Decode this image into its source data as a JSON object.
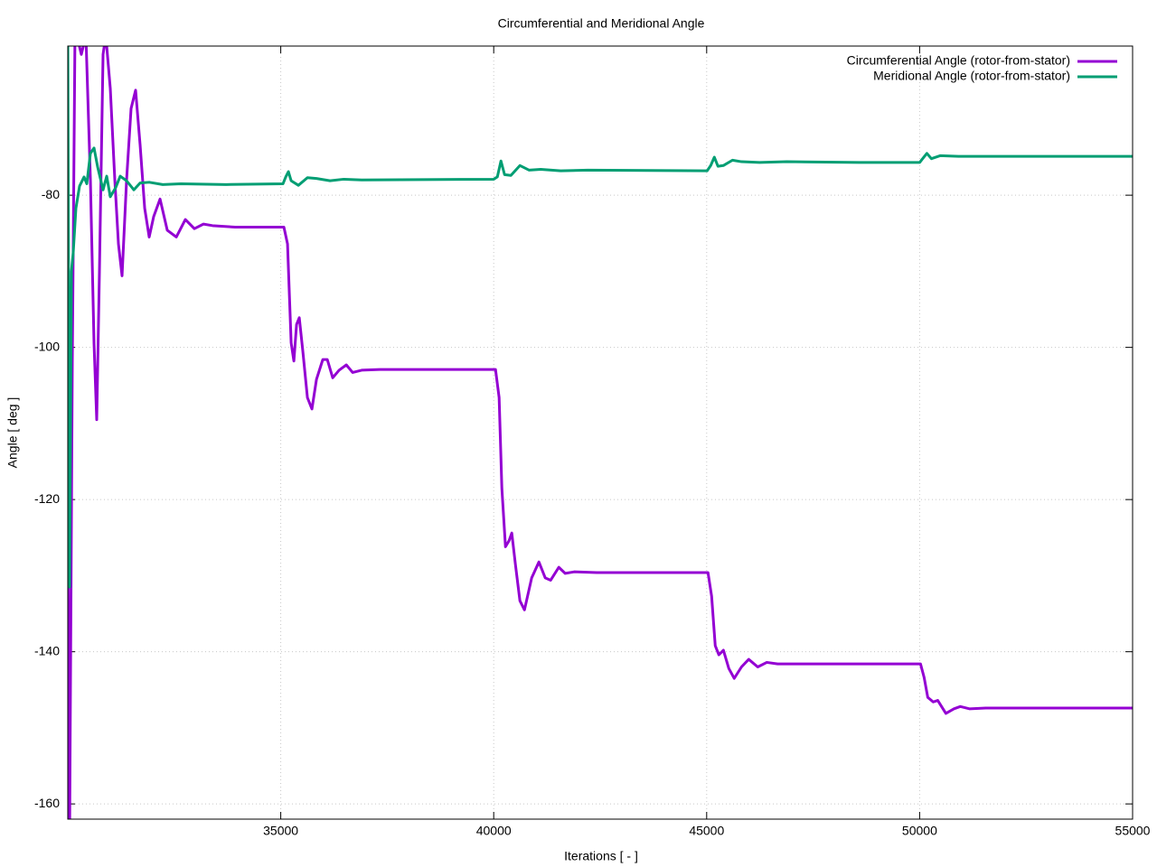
{
  "chart_data": {
    "type": "line",
    "title": "Circumferential and Meridional Angle",
    "x_label": "Iterations [ - ]",
    "y_label": "Angle [ deg ]",
    "xlim": [
      30000,
      55000
    ],
    "ylim": [
      -162,
      -60.4
    ],
    "xticks": [
      35000,
      40000,
      45000,
      50000,
      55000
    ],
    "yticks": [
      -160,
      -140,
      -120,
      -100,
      -80
    ],
    "grid": true,
    "legend": "top-right",
    "series": [
      {
        "name": "Circumferential Angle (rotor-from-stator)",
        "color": "#9400d3",
        "x": [
          30000,
          30042,
          30106,
          30170,
          30318,
          30425,
          30531,
          30616,
          30679,
          30743,
          30828,
          30892,
          30998,
          31104,
          31189,
          31274,
          31380,
          31486,
          31592,
          31698,
          31805,
          31911,
          32017,
          32166,
          32335,
          32548,
          32760,
          32972,
          33185,
          33397,
          33928,
          35074,
          35159,
          35244,
          35308,
          35371,
          35435,
          35520,
          35626,
          35732,
          35839,
          35987,
          36093,
          36220,
          36369,
          36539,
          36688,
          36900,
          37324,
          40042,
          40127,
          40191,
          40276,
          40361,
          40424,
          40509,
          40615,
          40722,
          40891,
          41061,
          41210,
          41337,
          41528,
          41677,
          41889,
          42420,
          45031,
          45116,
          45201,
          45286,
          45393,
          45520,
          45647,
          45817,
          45987,
          46199,
          46411,
          46666,
          47515,
          50021,
          50106,
          50191,
          50319,
          50425,
          50616,
          50807,
          50955,
          51168,
          51550,
          55000
        ],
        "values": [
          -123,
          -165,
          -102,
          -58,
          -61.5,
          -59,
          -78,
          -99.5,
          -109.5,
          -90,
          -61.5,
          -59,
          -66,
          -78,
          -86.4,
          -90.6,
          -78,
          -68.6,
          -66.2,
          -73.4,
          -81.7,
          -85.5,
          -82.8,
          -80.5,
          -84.6,
          -85.5,
          -83.2,
          -84.4,
          -83.8,
          -84,
          -84.2,
          -84.2,
          -86.4,
          -99.4,
          -101.8,
          -97,
          -96.1,
          -100.6,
          -106.6,
          -108.1,
          -104.2,
          -101.6,
          -101.6,
          -104,
          -103,
          -102.3,
          -103.3,
          -103,
          -102.9,
          -102.9,
          -106.6,
          -118.5,
          -126.2,
          -125.4,
          -124.4,
          -128.5,
          -133.3,
          -134.5,
          -130.3,
          -128.2,
          -130.3,
          -130.6,
          -128.9,
          -129.7,
          -129.5,
          -129.6,
          -129.6,
          -132.7,
          -139.2,
          -140.4,
          -139.8,
          -142.2,
          -143.5,
          -142,
          -141,
          -142,
          -141.4,
          -141.6,
          -141.6,
          -141.6,
          -143.4,
          -146,
          -146.6,
          -146.4,
          -148.1,
          -147.5,
          -147.2,
          -147.5,
          -147.4,
          -147.4
        ]
      },
      {
        "name": "Meridional Angle (rotor-from-stator)",
        "color": "#009e73",
        "x": [
          30000,
          30042,
          30085,
          30127,
          30191,
          30276,
          30382,
          30446,
          30531,
          30616,
          30701,
          30828,
          30913,
          30998,
          31125,
          31231,
          31380,
          31550,
          31698,
          31911,
          32229,
          32654,
          33715,
          35053,
          35117,
          35180,
          35244,
          35414,
          35626,
          35839,
          36157,
          36475,
          36900,
          40000,
          40085,
          40170,
          40255,
          40403,
          40616,
          40828,
          41104,
          41571,
          42208,
          45010,
          45095,
          45180,
          45265,
          45392,
          45605,
          45817,
          46242,
          46879,
          48577,
          50000,
          50085,
          50170,
          50276,
          50488,
          50913,
          51762,
          55000
        ],
        "values": [
          -59,
          -131.5,
          -90,
          -87.6,
          -81.7,
          -78.8,
          -77.6,
          -78.5,
          -74.5,
          -73.8,
          -76.3,
          -79.3,
          -77.5,
          -80.2,
          -79,
          -77.5,
          -78.1,
          -79.3,
          -78.4,
          -78.3,
          -78.6,
          -78.5,
          -78.6,
          -78.5,
          -77.6,
          -76.9,
          -78.1,
          -78.7,
          -77.7,
          -77.8,
          -78.1,
          -77.9,
          -78,
          -77.9,
          -77.6,
          -75.5,
          -77.3,
          -77.4,
          -76.1,
          -76.7,
          -76.6,
          -76.8,
          -76.7,
          -76.8,
          -76.1,
          -75,
          -76.2,
          -76.1,
          -75.4,
          -75.6,
          -75.7,
          -75.6,
          -75.7,
          -75.7,
          -75.1,
          -74.5,
          -75.2,
          -74.8,
          -74.9,
          -74.9,
          -74.9
        ]
      }
    ]
  }
}
